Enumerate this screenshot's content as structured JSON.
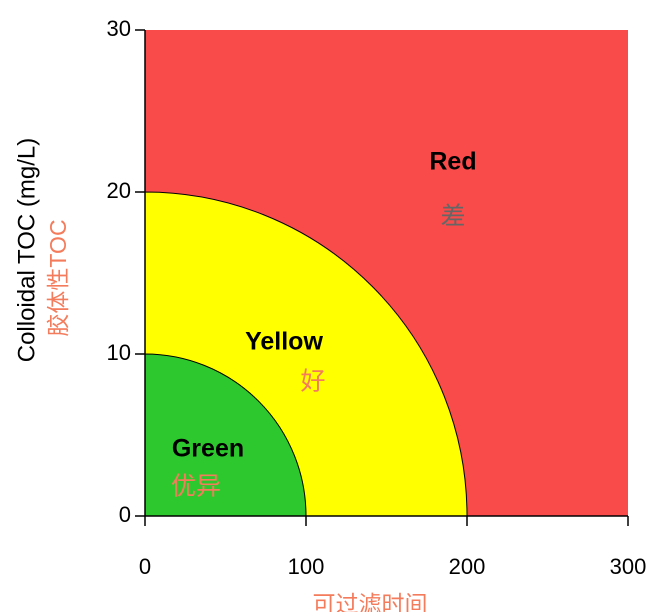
{
  "chart_data": {
    "type": "zone",
    "x_label": "可过滤时间",
    "y_label": "Colloidal TOC (mg/L)",
    "y_label_cn": "胶体性TOC",
    "xlim": [
      0,
      300
    ],
    "ylim": [
      0,
      30
    ],
    "xticks": [
      0,
      100,
      200,
      300
    ],
    "yticks": [
      0,
      10,
      20,
      30
    ],
    "zones": [
      {
        "name": "Red",
        "label": "差",
        "color": "#fa4b4b"
      },
      {
        "name": "Yellow",
        "label": "好",
        "color": "#ffff00",
        "x_extent": 200,
        "y_extent": 20
      },
      {
        "name": "Green",
        "label": "优异",
        "color": "#2dc82d",
        "x_extent": 100,
        "y_extent": 10
      }
    ]
  }
}
